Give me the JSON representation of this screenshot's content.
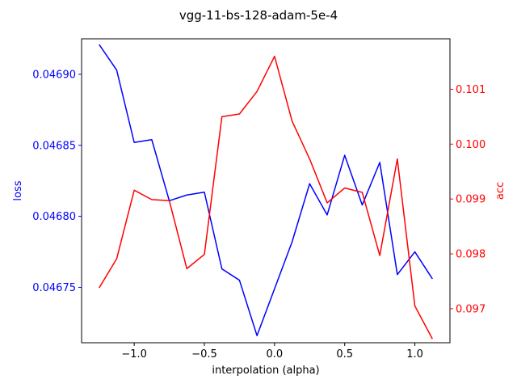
{
  "chart_data": {
    "type": "line",
    "title": "vgg-11-bs-128-adam-5e-4",
    "xlabel": "interpolation (alpha)",
    "ylabel_left": "loss",
    "ylabel_right": "acc",
    "xlim": [
      -1.375,
      1.25
    ],
    "ylim_left": [
      0.046711,
      0.046925
    ],
    "ylim_right": [
      0.09638,
      0.10192
    ],
    "xticks": [
      -1.0,
      -0.5,
      0.0,
      0.5,
      1.0
    ],
    "xtick_labels": [
      "−1.0",
      "−0.5",
      "0.0",
      "0.5",
      "1.0"
    ],
    "yticks_left": [
      0.04675,
      0.0468,
      0.04685,
      0.0469
    ],
    "ytick_labels_left": [
      "0.04675",
      "0.04680",
      "0.04685",
      "0.04690"
    ],
    "yticks_right": [
      0.097,
      0.098,
      0.099,
      0.1,
      0.101
    ],
    "ytick_labels_right": [
      "0.097",
      "0.098",
      "0.099",
      "0.100",
      "0.101"
    ],
    "grid": false,
    "colors": {
      "left_axis": "#0000ff",
      "right_axis": "#ff0000",
      "frame": "#000000"
    },
    "x": [
      -1.25,
      -1.125,
      -1.0,
      -0.875,
      -0.75,
      -0.625,
      -0.5,
      -0.375,
      -0.25,
      -0.125,
      0.0,
      0.125,
      0.25,
      0.375,
      0.5,
      0.625,
      0.75,
      0.875,
      1.0,
      1.125
    ],
    "series": [
      {
        "name": "loss",
        "axis": "left",
        "color": "#0000ff",
        "values": [
          0.046921,
          0.046903,
          0.046852,
          0.046854,
          0.046811,
          0.046815,
          0.046817,
          0.046763,
          0.046755,
          0.046716,
          0.046749,
          0.046782,
          0.046823,
          0.046801,
          0.046843,
          0.046808,
          0.046838,
          0.046759,
          0.046775,
          0.046756
        ]
      },
      {
        "name": "acc",
        "axis": "right",
        "color": "#ff0000",
        "values": [
          0.09738,
          0.09791,
          0.09916,
          0.09899,
          0.09897,
          0.09773,
          0.09799,
          0.1005,
          0.10055,
          0.10096,
          0.1016,
          0.10042,
          0.09973,
          0.09893,
          0.0992,
          0.09912,
          0.09797,
          0.09973,
          0.09705,
          0.09645
        ]
      }
    ]
  }
}
